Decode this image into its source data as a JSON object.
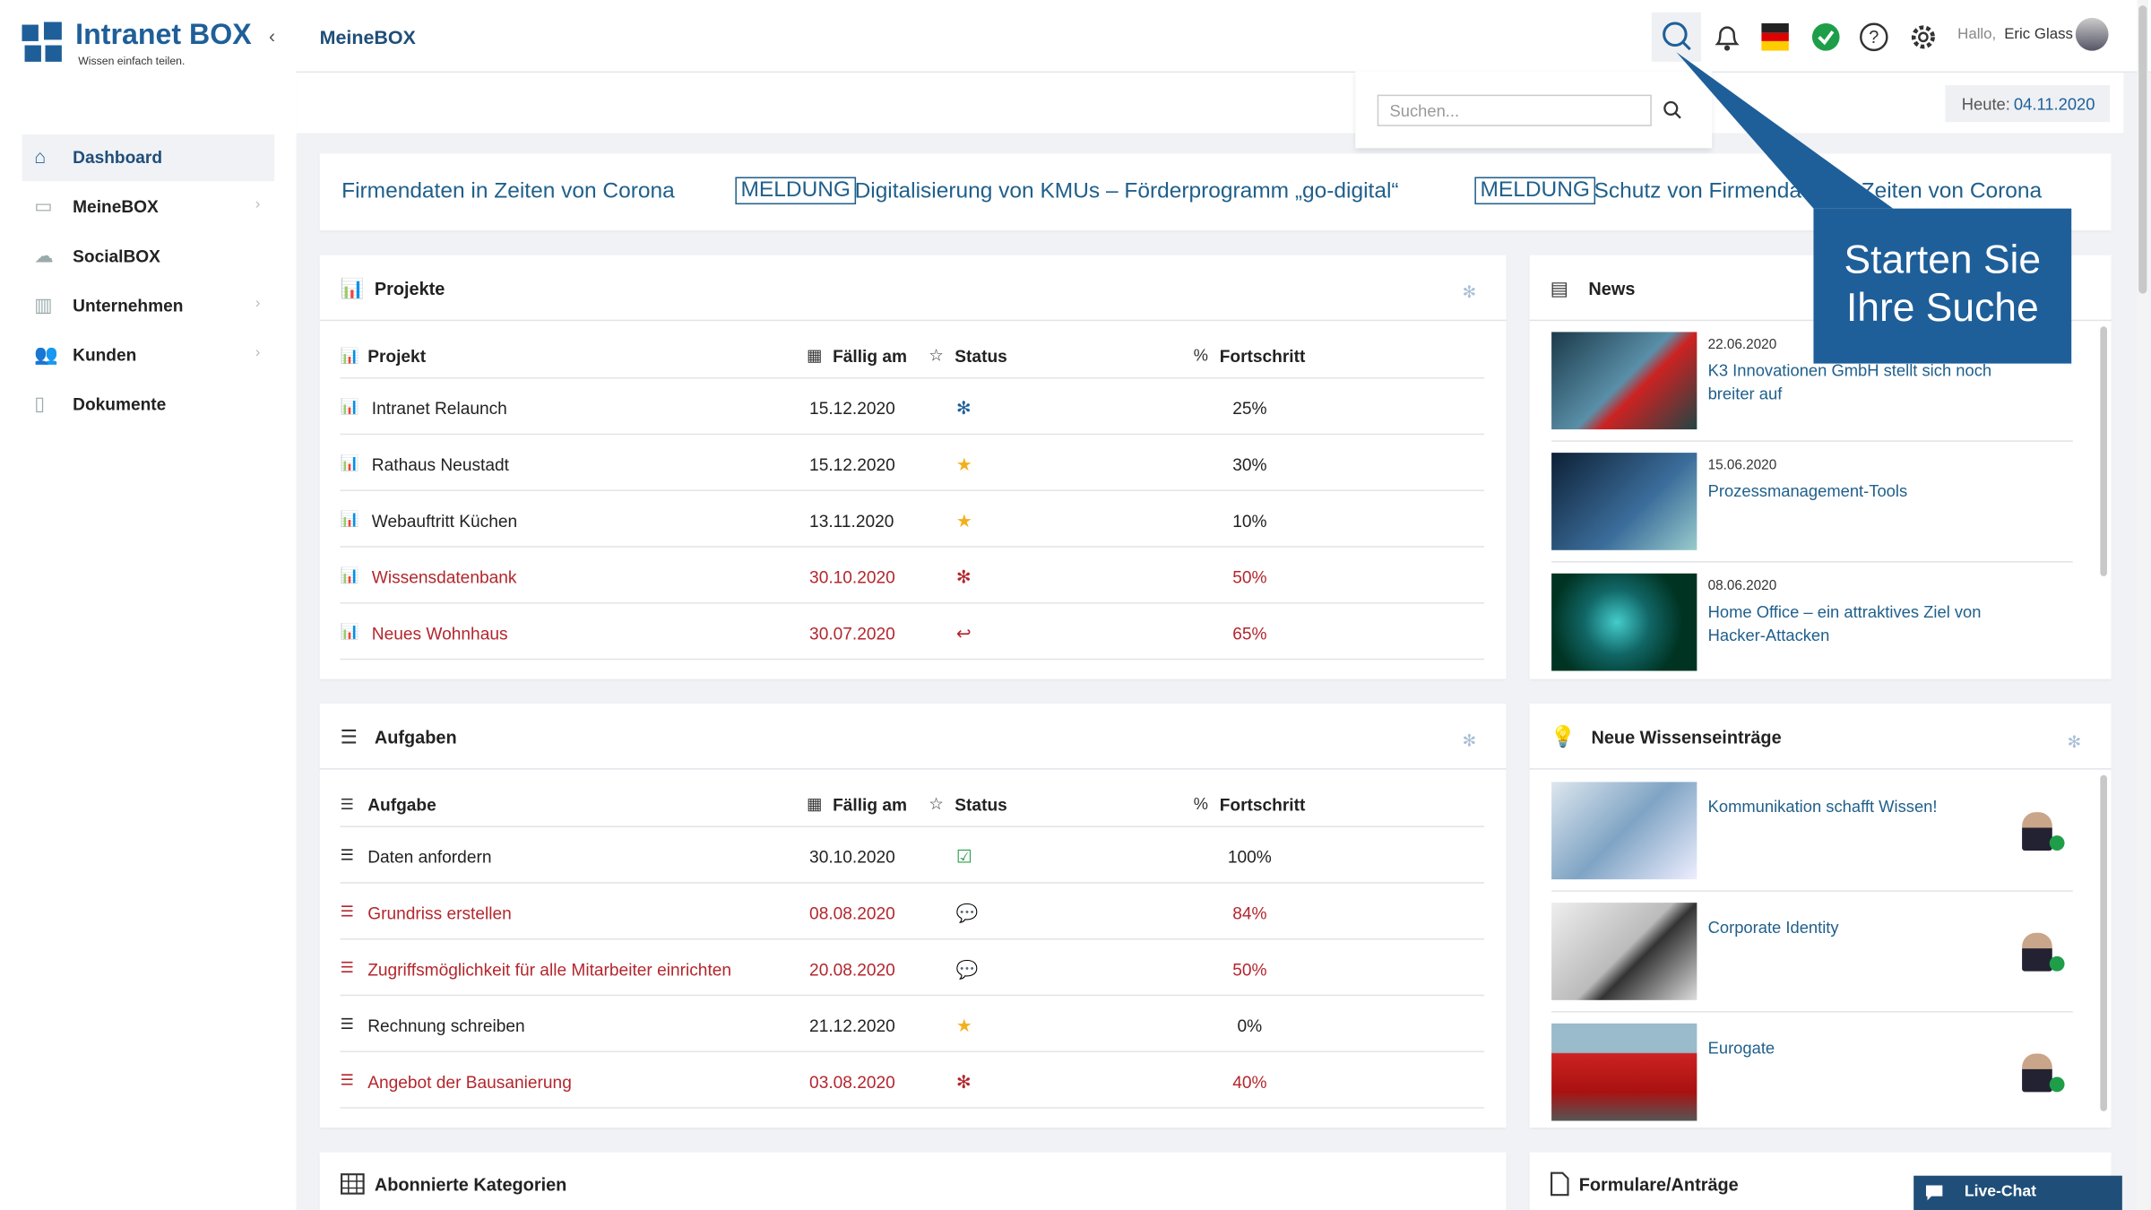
{
  "header": {
    "logo": "Intranet BOX",
    "tagline": "Wissen einfach teilen.",
    "page": "MeineBOX",
    "greeting": "Hallo,",
    "user": "Eric Glass"
  },
  "search": {
    "placeholder": "Suchen..."
  },
  "today": {
    "label": "Heute:",
    "date": "04.11.2020"
  },
  "sidebar": {
    "items": [
      "Dashboard",
      "MeineBOX",
      "SocialBOX",
      "Unternehmen",
      "Kunden",
      "Dokumente"
    ]
  },
  "ticker": {
    "lead": "Firmendaten in Zeiten von Corona",
    "items": [
      {
        "tag": "MELDUNG",
        "text": "Digitalisierung von KMUs – Förderprogramm „go-digital“"
      },
      {
        "tag": "MELDUNG",
        "text": "Schutz von Firmendaten in Zeiten von Corona"
      }
    ]
  },
  "callout": [
    "Starten Sie",
    "Ihre Suche"
  ],
  "projects": {
    "title": "Projekte",
    "columns": [
      "Projekt",
      "Fällig am",
      "Status",
      "Fortschritt"
    ],
    "rows": [
      {
        "name": "Intranet Relaunch",
        "date": "15.12.2020",
        "progress": "25%",
        "status": "gear",
        "color": "#222222"
      },
      {
        "name": "Rathaus Neustadt",
        "date": "15.12.2020",
        "progress": "30%",
        "status": "star",
        "color": "#222222"
      },
      {
        "name": "Webauftritt Küchen",
        "date": "13.11.2020",
        "progress": "10%",
        "status": "star",
        "color": "#222222"
      },
      {
        "name": "Wissensdatenbank",
        "date": "30.10.2020",
        "progress": "50%",
        "status": "gear",
        "color": "#b3262d"
      },
      {
        "name": "Neues Wohnhaus",
        "date": "30.07.2020",
        "progress": "65%",
        "status": "reply",
        "color": "#b3262d"
      }
    ]
  },
  "tasks": {
    "title": "Aufgaben",
    "columns": [
      "Aufgabe",
      "Fällig am",
      "Status",
      "Fortschritt"
    ],
    "rows": [
      {
        "name": "Daten anfordern",
        "date": "30.10.2020",
        "progress": "100%",
        "status": "check",
        "color": "#222222"
      },
      {
        "name": "Grundriss erstellen",
        "date": "08.08.2020",
        "progress": "84%",
        "status": "chat",
        "color": "#b3262d"
      },
      {
        "name": "Zugriffsmöglichkeit für alle Mitarbeiter einrichten",
        "date": "20.08.2020",
        "progress": "50%",
        "status": "chat",
        "color": "#b3262d"
      },
      {
        "name": "Rechnung schreiben",
        "date": "21.12.2020",
        "progress": "0%",
        "status": "star",
        "color": "#222222"
      },
      {
        "name": "Angebot der Bausanierung",
        "date": "03.08.2020",
        "progress": "40%",
        "status": "gear",
        "color": "#b3262d"
      }
    ]
  },
  "news": {
    "title": "News",
    "items": [
      {
        "date": "22.06.2020",
        "title": "K3 Innovationen GmbH stellt sich noch breiter auf"
      },
      {
        "date": "15.06.2020",
        "title": "Prozessmanagement-Tools"
      },
      {
        "date": "08.06.2020",
        "title": "Home Office – ein attraktives Ziel von Hacker-Attacken"
      }
    ]
  },
  "knowledge": {
    "title": "Neue Wissenseinträge",
    "items": [
      "Kommunikation schafft Wissen!",
      "Corporate Identity",
      "Eurogate"
    ]
  },
  "bottom": {
    "categories": "Abonnierte Kategorien",
    "forms": "Formulare/Anträge",
    "chat": "Live-Chat"
  }
}
